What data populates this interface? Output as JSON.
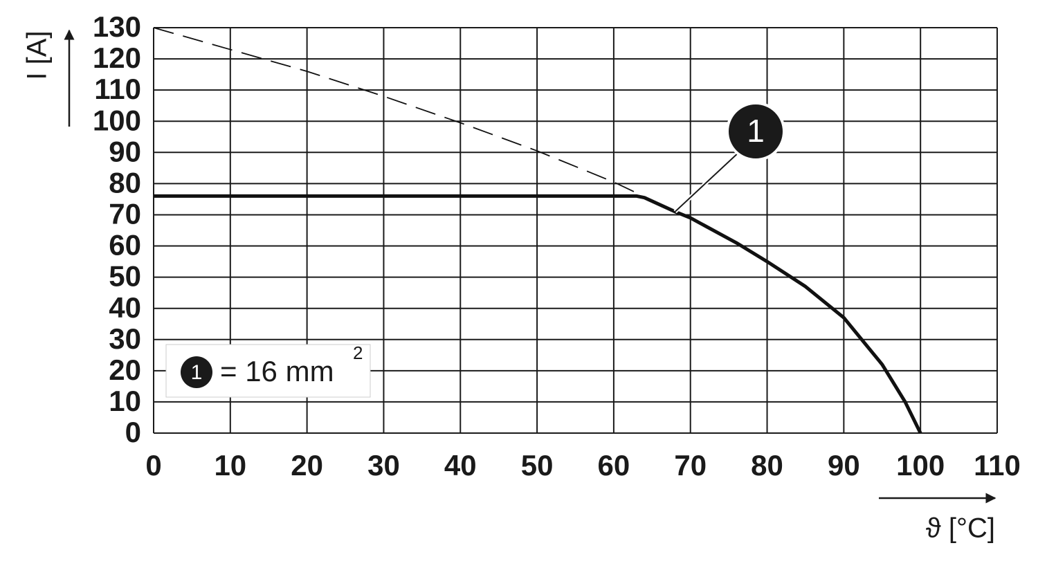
{
  "chart_data": {
    "type": "line",
    "x": [
      0,
      10,
      20,
      30,
      40,
      50,
      60,
      63,
      64,
      68,
      70,
      76,
      80,
      85,
      90,
      95,
      98,
      100
    ],
    "series": [
      {
        "color": "#111111",
        "dashed": false,
        "values": [
          76,
          76,
          76,
          76,
          76,
          76,
          76,
          76,
          75.5,
          71,
          69,
          61,
          55,
          47,
          37,
          22,
          10,
          0
        ]
      },
      {
        "color": "#111111",
        "dashed": true,
        "values": [
          130,
          123,
          116,
          108,
          99.5,
          90.5,
          80.5,
          77,
          null,
          null,
          null,
          null,
          null,
          null,
          null,
          null,
          null,
          null
        ]
      }
    ],
    "xlim": [
      0,
      110
    ],
    "ylim": [
      0,
      130
    ],
    "xticks": [
      0,
      10,
      20,
      30,
      40,
      50,
      60,
      70,
      80,
      90,
      100,
      110
    ],
    "yticks": [
      0,
      10,
      20,
      30,
      40,
      50,
      60,
      70,
      80,
      90,
      100,
      110,
      120,
      130
    ],
    "grid": true,
    "x_label": "ϑ [°C]",
    "y_label": "I [A]",
    "annotation": "1",
    "legend": {
      "marker": "1",
      "text": "= 16 mm",
      "superscript": "2"
    }
  }
}
